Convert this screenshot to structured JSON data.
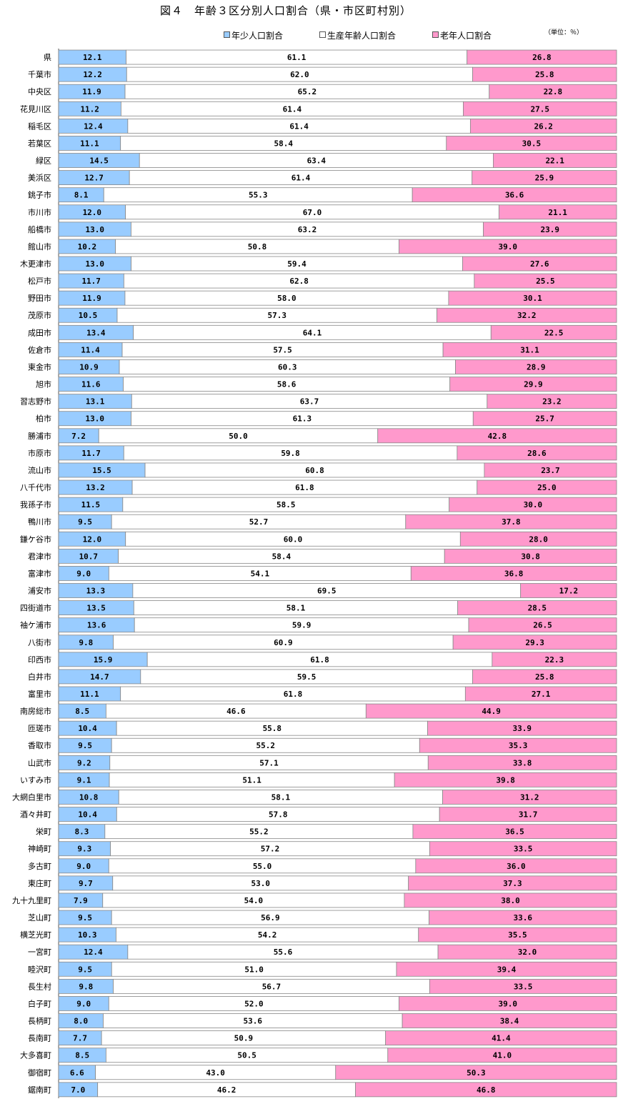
{
  "title": "図４　年齢３区分別人口割合（県・市区町村別）",
  "unit": "（単位：％）",
  "colors": {
    "young": "#99CCFF",
    "working": "#FFFFFF",
    "old": "#FF99CC",
    "border": "#888888",
    "axis": "#555555"
  },
  "chart_data": {
    "type": "bar",
    "orientation": "horizontal",
    "stacked": "100%",
    "title": "図４　年齢３区分別人口割合（県・市区町村別）",
    "unit": "（単位：％）",
    "xlim": [
      0,
      100
    ],
    "legend_position": "top",
    "grid": false,
    "categories": [
      "県",
      "千葉市",
      "中央区",
      "花見川区",
      "稲毛区",
      "若葉区",
      "緑区",
      "美浜区",
      "銚子市",
      "市川市",
      "船橋市",
      "館山市",
      "木更津市",
      "松戸市",
      "野田市",
      "茂原市",
      "成田市",
      "佐倉市",
      "東金市",
      "旭市",
      "習志野市",
      "柏市",
      "勝浦市",
      "市原市",
      "流山市",
      "八千代市",
      "我孫子市",
      "鴨川市",
      "鎌ケ谷市",
      "君津市",
      "富津市",
      "浦安市",
      "四街道市",
      "袖ケ浦市",
      "八街市",
      "印西市",
      "白井市",
      "富里市",
      "南房総市",
      "匝瑳市",
      "香取市",
      "山武市",
      "いすみ市",
      "大網白里市",
      "酒々井町",
      "栄町",
      "神崎町",
      "多古町",
      "東庄町",
      "九十九里町",
      "芝山町",
      "横芝光町",
      "一宮町",
      "睦沢町",
      "長生村",
      "白子町",
      "長柄町",
      "長南町",
      "大多喜町",
      "御宿町",
      "鋸南町"
    ],
    "series": [
      {
        "name": "年少人口割合",
        "values": [
          12.1,
          12.2,
          11.9,
          11.2,
          12.4,
          11.1,
          14.5,
          12.7,
          8.1,
          12.0,
          13.0,
          10.2,
          13.0,
          11.7,
          11.9,
          10.5,
          13.4,
          11.4,
          10.9,
          11.6,
          13.1,
          13.0,
          7.2,
          11.7,
          15.5,
          13.2,
          11.5,
          9.5,
          12.0,
          10.7,
          9.0,
          13.3,
          13.5,
          13.6,
          9.8,
          15.9,
          14.7,
          11.1,
          8.5,
          10.4,
          9.5,
          9.2,
          9.1,
          10.8,
          10.4,
          8.3,
          9.3,
          9.0,
          9.7,
          7.9,
          9.5,
          10.3,
          12.4,
          9.5,
          9.8,
          9.0,
          8.0,
          7.7,
          8.5,
          6.6,
          7.0
        ]
      },
      {
        "name": "生産年齢人口割合",
        "values": [
          61.1,
          62.0,
          65.2,
          61.4,
          61.4,
          58.4,
          63.4,
          61.4,
          55.3,
          67.0,
          63.2,
          50.8,
          59.4,
          62.8,
          58.0,
          57.3,
          64.1,
          57.5,
          60.3,
          58.6,
          63.7,
          61.3,
          50.0,
          59.8,
          60.8,
          61.8,
          58.5,
          52.7,
          60.0,
          58.4,
          54.1,
          69.5,
          58.1,
          59.9,
          60.9,
          61.8,
          59.5,
          61.8,
          46.6,
          55.8,
          55.2,
          57.1,
          51.1,
          58.1,
          57.8,
          55.2,
          57.2,
          55.0,
          53.0,
          54.0,
          56.9,
          54.2,
          55.6,
          51.0,
          56.7,
          52.0,
          53.6,
          50.9,
          50.5,
          43.0,
          46.2
        ]
      },
      {
        "name": "老年人口割合",
        "values": [
          26.8,
          25.8,
          22.8,
          27.5,
          26.2,
          30.5,
          22.1,
          25.9,
          36.6,
          21.1,
          23.9,
          39.0,
          27.6,
          25.5,
          30.1,
          32.2,
          22.5,
          31.1,
          28.9,
          29.9,
          23.2,
          25.7,
          42.8,
          28.6,
          23.7,
          25.0,
          30.0,
          37.8,
          28.0,
          30.8,
          36.8,
          17.2,
          28.5,
          26.5,
          29.3,
          22.3,
          25.8,
          27.1,
          44.9,
          33.9,
          35.3,
          33.8,
          39.8,
          31.2,
          31.7,
          36.5,
          33.5,
          36.0,
          37.3,
          38.0,
          33.6,
          35.5,
          32.0,
          39.4,
          33.5,
          39.0,
          38.4,
          41.4,
          41.0,
          50.3,
          46.8
        ]
      }
    ]
  }
}
